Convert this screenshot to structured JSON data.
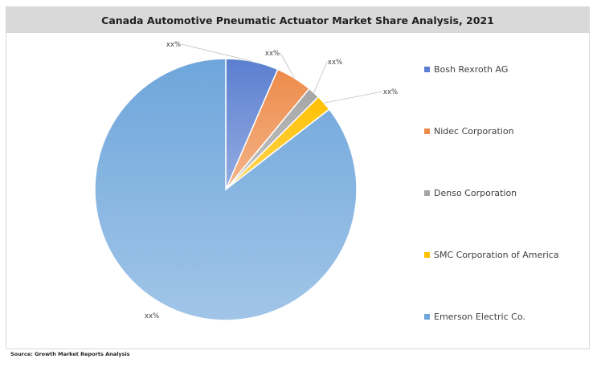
{
  "title": "Canada Automotive Pneumatic Actuator Market Share Analysis, 2021",
  "source": "Source: Growth Market Reports Analysis",
  "chart_data": {
    "type": "pie",
    "title": "Canada Automotive Pneumatic Actuator Market Share Analysis, 2021",
    "legend_position": "right",
    "series": [
      {
        "name": "Bosh Rexroth AG",
        "value": 6.5,
        "label": "xx%",
        "color": "#5b7fd0"
      },
      {
        "name": "Nidec Corporation",
        "value": 4.5,
        "label": "xx%",
        "color": "#ed8b4a"
      },
      {
        "name": "Denso Corporation",
        "value": 1.5,
        "label": "xx%",
        "color": "#a5a5a5"
      },
      {
        "name": "SMC Corporation of America",
        "value": 2.0,
        "label": "xx%",
        "color": "#ffc000"
      },
      {
        "name": "Emerson Electric Co.",
        "value": 85.5,
        "label": "xx%",
        "color": "#6ea6db"
      }
    ]
  }
}
